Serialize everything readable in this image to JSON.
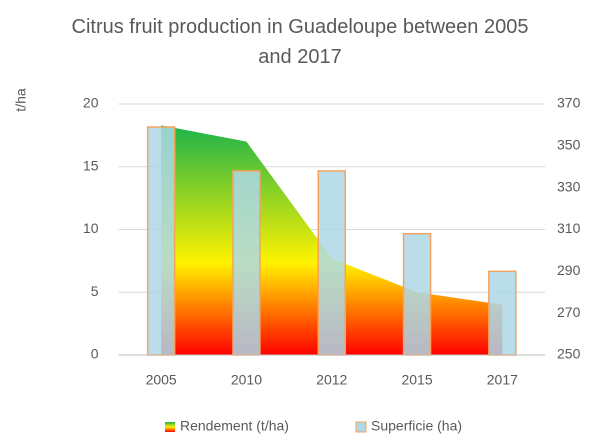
{
  "chart_data": {
    "type": "combo",
    "title": "Citrus fruit production in Guadeloupe between 2005 and 2017",
    "y_label": "t/ha",
    "categories": [
      "2005",
      "2010",
      "2012",
      "2015",
      "2017"
    ],
    "series": [
      {
        "name": "Rendement (t/ha)",
        "type": "area",
        "axis": "y",
        "colors": [
          "#1db34a",
          "#fff200",
          "#ff0000"
        ],
        "values": [
          18.3,
          17.0,
          7.7,
          5.0,
          4.0
        ]
      },
      {
        "name": "Superficie (ha)",
        "type": "bar",
        "axis": "y2",
        "color": "#add8e6",
        "edge_color": "#f4a460",
        "values": [
          359,
          338,
          338,
          308,
          290
        ]
      }
    ],
    "ylim": [
      0,
      20
    ],
    "yticks": [
      0,
      5,
      10,
      15,
      20
    ],
    "y2lim": [
      250,
      370
    ],
    "y2ticks": [
      250,
      270,
      290,
      310,
      330,
      350,
      370
    ],
    "grid": true,
    "legend": "bottom"
  }
}
